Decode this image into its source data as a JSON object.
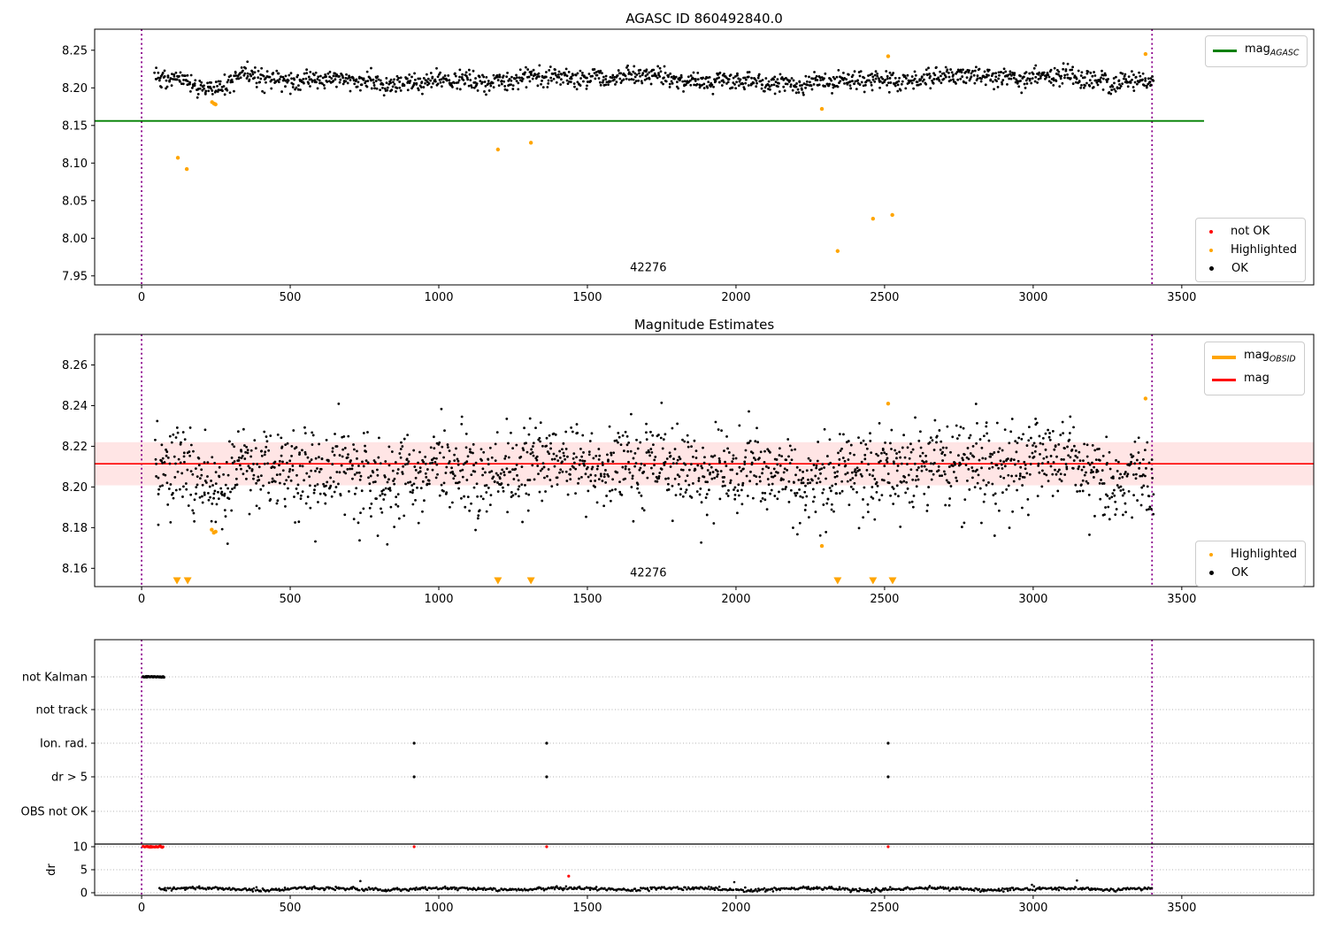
{
  "chart_data": [
    {
      "type": "scatter",
      "title": "AGASC ID 860492840.0",
      "xlim": [
        -158,
        3944
      ],
      "ylim": [
        7.938,
        8.278
      ],
      "xtick_values": [
        0,
        500,
        1000,
        1500,
        2000,
        2500,
        3000,
        3500
      ],
      "xtick_labels": [
        "0",
        "500",
        "1000",
        "1500",
        "2000",
        "2500",
        "3000",
        "3500"
      ],
      "ytick_values": [
        7.95,
        8.0,
        8.05,
        8.1,
        8.15,
        8.2,
        8.25
      ],
      "ytick_labels": [
        "7.95",
        "8.00",
        "8.05",
        "8.10",
        "8.15",
        "8.20",
        "8.25"
      ],
      "agasc_line": {
        "value": 8.156,
        "x_start": -158,
        "x_end": 3575,
        "color": "#008000",
        "legend_main": "mag",
        "legend_sub": "AGASC"
      },
      "vlines": {
        "x": [
          0,
          3400
        ],
        "color": "#8B008B"
      },
      "obsid_annotation": {
        "text": "42276",
        "x": 1705,
        "y": 7.956
      },
      "ok_series": {
        "label": "OK",
        "color": "#000000",
        "count": 1500,
        "x_start": 45,
        "x_end": 3405,
        "mean": 8.211,
        "std": 0.0063,
        "dip_x": 240,
        "dip_depth": 0.016,
        "dip_width": 50,
        "y_min": 8.168,
        "y_max": 8.25
      },
      "not_ok_series": {
        "label": "not OK",
        "color": "#FF0000",
        "points": []
      },
      "highlighted_series": {
        "label": "Highlighted",
        "color": "#FFA500",
        "points": [
          [
            122,
            8.107
          ],
          [
            152,
            8.092
          ],
          [
            237,
            8.181
          ],
          [
            244,
            8.179
          ],
          [
            249,
            8.178
          ],
          [
            1199,
            8.118
          ],
          [
            1310,
            8.127
          ],
          [
            2289,
            8.172
          ],
          [
            2342,
            7.983
          ],
          [
            2461,
            8.026
          ],
          [
            2512,
            8.242
          ],
          [
            2526,
            8.031
          ],
          [
            3378,
            8.245
          ]
        ]
      }
    },
    {
      "type": "scatter",
      "title": "Magnitude Estimates",
      "xlim": [
        -158,
        3944
      ],
      "ylim": [
        8.151,
        8.275
      ],
      "xtick_values": [
        0,
        500,
        1000,
        1500,
        2000,
        2500,
        3000,
        3500
      ],
      "xtick_labels": [
        "0",
        "500",
        "1000",
        "1500",
        "2000",
        "2500",
        "3000",
        "3500"
      ],
      "ytick_values": [
        8.16,
        8.18,
        8.2,
        8.22,
        8.24,
        8.26
      ],
      "ytick_labels": [
        "8.16",
        "8.18",
        "8.20",
        "8.22",
        "8.24",
        "8.26"
      ],
      "mag_line": {
        "value": 8.2114,
        "color": "#FF0000",
        "legend_main": "mag",
        "legend_sub": ""
      },
      "mag_obsid_legend": {
        "color": "#FFA500",
        "legend_main": "mag",
        "legend_sub": "OBSID"
      },
      "band": {
        "y_min": 8.2008,
        "y_max": 8.222,
        "color": "#FF0000",
        "opacity": 0.1
      },
      "vlines": {
        "x": [
          0,
          3400
        ],
        "color": "#8B008B"
      },
      "obsid_annotation": {
        "text": "42276",
        "x": 1705,
        "y": 8.156
      },
      "ok_series": {
        "label": "OK",
        "color": "#000000",
        "count": 1800,
        "x_start": 45,
        "x_end": 3405,
        "mean": 8.2095,
        "std": 0.01,
        "dip_x": 255,
        "dip_depth": 0.018,
        "dip_width": 45,
        "y_min": 8.153,
        "y_max": 8.2465
      },
      "highlighted_series": {
        "label": "Highlighted",
        "color": "#FFA500",
        "points": [
          [
            236,
            8.179
          ],
          [
            243,
            8.1775
          ],
          [
            249,
            8.178
          ],
          [
            2289,
            8.171
          ],
          [
            2512,
            8.241
          ],
          [
            3378,
            8.2435
          ]
        ]
      },
      "clipped_low_markers": {
        "color": "#FFA500",
        "x": [
          119,
          155,
          1199,
          1310,
          2342,
          2461,
          2527
        ]
      }
    },
    {
      "type": "flags+dr",
      "xlim": [
        -158,
        3944
      ],
      "xtick_values": [
        0,
        500,
        1000,
        1500,
        2000,
        2500,
        3000,
        3500
      ],
      "xtick_labels": [
        "0",
        "500",
        "1000",
        "1500",
        "2000",
        "2500",
        "3000",
        "3500"
      ],
      "categories": [
        "not Kalman",
        "not track",
        "Ion. rad.",
        "dr > 5",
        "OBS not OK"
      ],
      "flag_events": {
        "color": "#000000",
        "not_kalman_cluster": {
          "x_start": 5,
          "x_end": 75,
          "count": 28
        },
        "not_track_x": [],
        "ion_rad_x": [
          917,
          1363,
          2512
        ],
        "dr_gt5_x": [
          917,
          1363,
          2512
        ],
        "obs_not_ok_x": []
      },
      "dr_panel": {
        "ylabel": "dr",
        "ytick_values": [
          0,
          5,
          10
        ],
        "ytick_labels": [
          "0",
          "5",
          "10"
        ],
        "threshold_value": 10,
        "threshold_color": "#000000",
        "point_color": "#000000",
        "red_color": "#FF0000",
        "clipped_cluster": {
          "x_start": 5,
          "x_end": 72,
          "count": 24
        },
        "clipped_x": [
          917,
          1363,
          2512
        ],
        "red_points": [
          [
            1437,
            3.6
          ]
        ],
        "trace": {
          "count": 850,
          "x_start": 60,
          "x_end": 3400,
          "base": 0.8
        }
      },
      "vlines": {
        "x": [
          0,
          3400
        ],
        "color": "#8B008B"
      },
      "grid_color": "#b3b3b3"
    }
  ]
}
